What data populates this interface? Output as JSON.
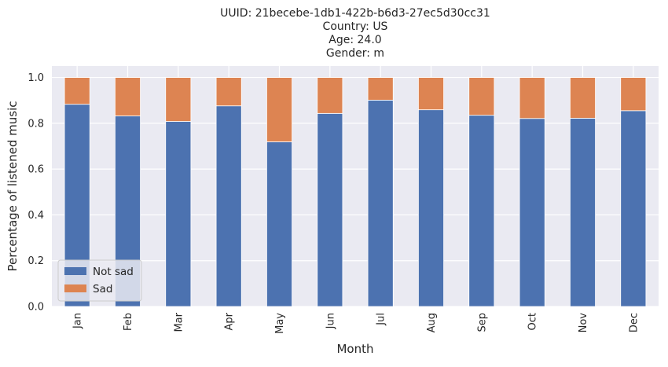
{
  "chart_data": {
    "type": "bar",
    "stacked": true,
    "title_lines": [
      "UUID: 21becebe-1db1-422b-b6d3-27ec5d30cc31",
      "Country: US",
      "Age: 24.0",
      "Gender: m"
    ],
    "xlabel": "Month",
    "ylabel": "Percentage of listened music",
    "categories": [
      "Jan",
      "Feb",
      "Mar",
      "Apr",
      "May",
      "Jun",
      "Jul",
      "Aug",
      "Sep",
      "Oct",
      "Nov",
      "Dec"
    ],
    "series": [
      {
        "name": "Not sad",
        "color": "#4c72b0",
        "values": [
          0.883,
          0.832,
          0.808,
          0.876,
          0.719,
          0.843,
          0.901,
          0.859,
          0.835,
          0.821,
          0.822,
          0.855
        ]
      },
      {
        "name": "Sad",
        "color": "#dd8452",
        "values": [
          0.117,
          0.168,
          0.192,
          0.124,
          0.281,
          0.157,
          0.099,
          0.141,
          0.165,
          0.179,
          0.178,
          0.145
        ]
      }
    ],
    "yticks": [
      "0.0",
      "0.2",
      "0.4",
      "0.6",
      "0.8",
      "1.0"
    ],
    "ylim": [
      0,
      1.05
    ],
    "grid": true,
    "legend_position": "lower-left",
    "background_color": "#eaeaf2",
    "grid_color": "#ffffff"
  }
}
